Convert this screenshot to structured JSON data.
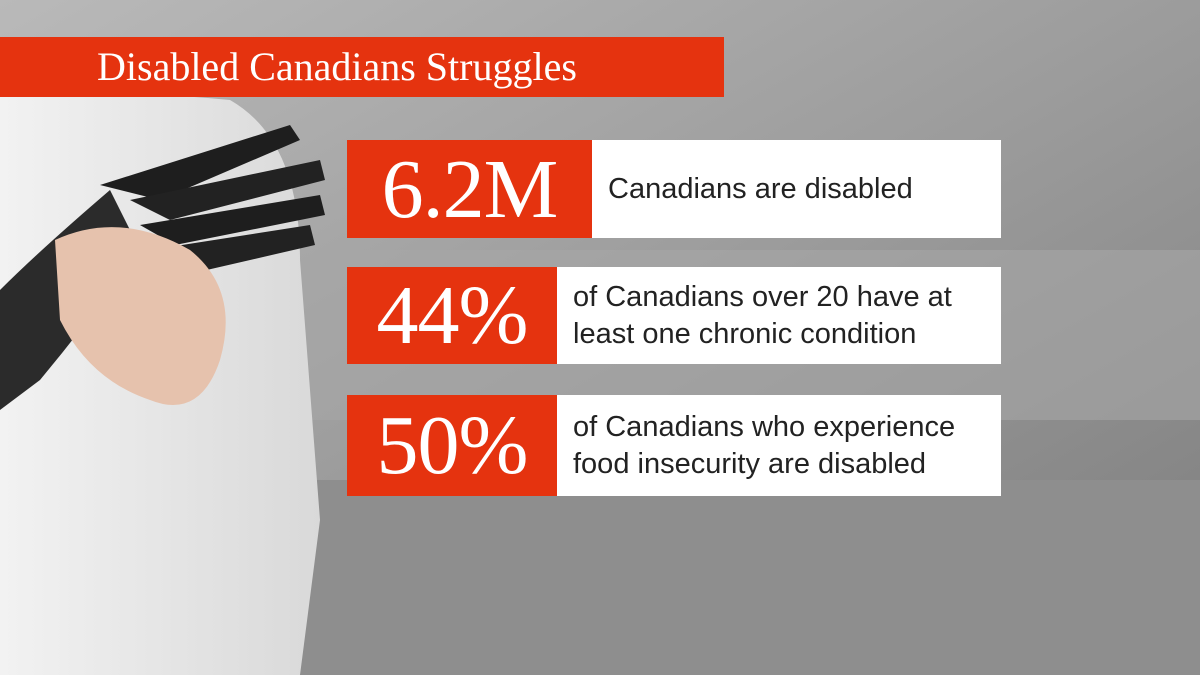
{
  "title": "Disabled Canadians Struggles",
  "stats": [
    {
      "value": "6.2M",
      "description_lines": [
        "Canadians are disabled"
      ]
    },
    {
      "value": "44%",
      "description_lines": [
        "of Canadians over 20 have at",
        "least one chronic condition"
      ]
    },
    {
      "value": "50%",
      "description_lines": [
        "of Canadians who experience",
        "food insecurity are disabled"
      ]
    }
  ]
}
